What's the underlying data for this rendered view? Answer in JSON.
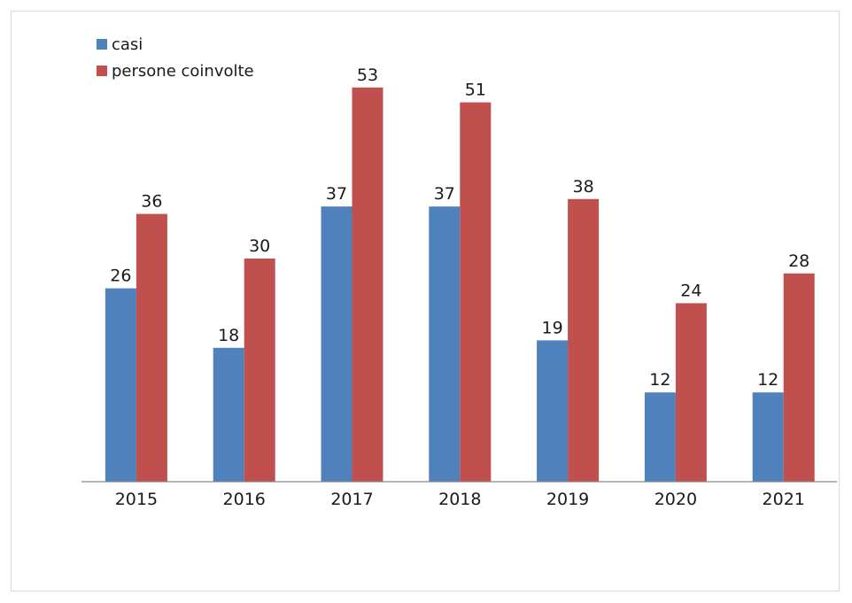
{
  "chart_data": {
    "type": "bar",
    "categories": [
      "2015",
      "2016",
      "2017",
      "2018",
      "2019",
      "2020",
      "2021"
    ],
    "series": [
      {
        "name": "casi",
        "color": "#4f81bd",
        "values": [
          26,
          18,
          37,
          37,
          19,
          12,
          12
        ]
      },
      {
        "name": "persone coinvolte",
        "color": "#c0504d",
        "values": [
          36,
          30,
          53,
          51,
          38,
          24,
          28
        ]
      }
    ],
    "title": "",
    "xlabel": "",
    "ylabel": "",
    "ylim": [
      0,
      60
    ],
    "grid": false,
    "legend": "top-left",
    "data_labels": true
  }
}
